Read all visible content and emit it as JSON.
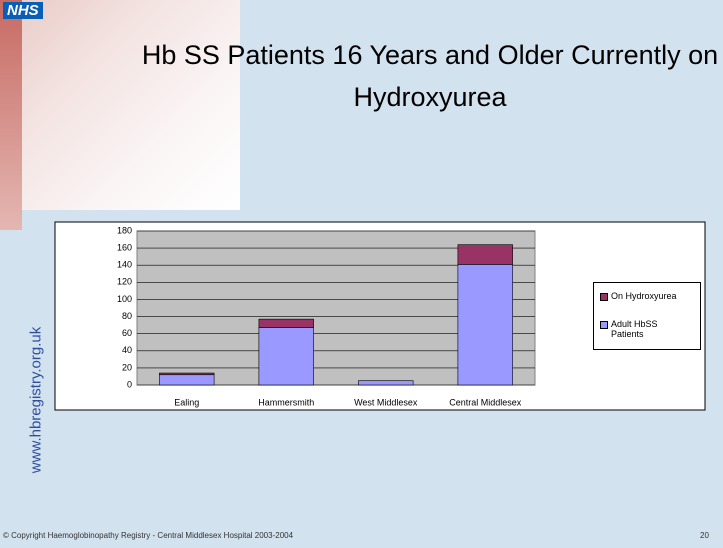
{
  "logo": "NHS",
  "website": "www.hbregistry.org.uk",
  "footer": "© Copyright Haemoglobinopathy Registry - Central Middlesex Hospital 2003-2004",
  "page_number": "20",
  "chart_data": {
    "type": "stacked_bar",
    "title": "Hb SS Patients 16 Years and Older Currently on Hydroxyurea",
    "categories": [
      "Ealing",
      "Hammersmith",
      "West Middlesex",
      "Central Middlesex"
    ],
    "series": [
      {
        "name": "Adult HbSS Patients",
        "color": "#9999ff",
        "values": [
          12,
          67,
          5,
          141
        ]
      },
      {
        "name": "On Hydroxyurea",
        "color": "#993366",
        "values": [
          2,
          10,
          0,
          23
        ]
      }
    ],
    "ylim": [
      0,
      180
    ],
    "yticks": [
      0,
      20,
      40,
      60,
      80,
      100,
      120,
      140,
      160,
      180
    ],
    "grid": true,
    "legend": "right"
  }
}
